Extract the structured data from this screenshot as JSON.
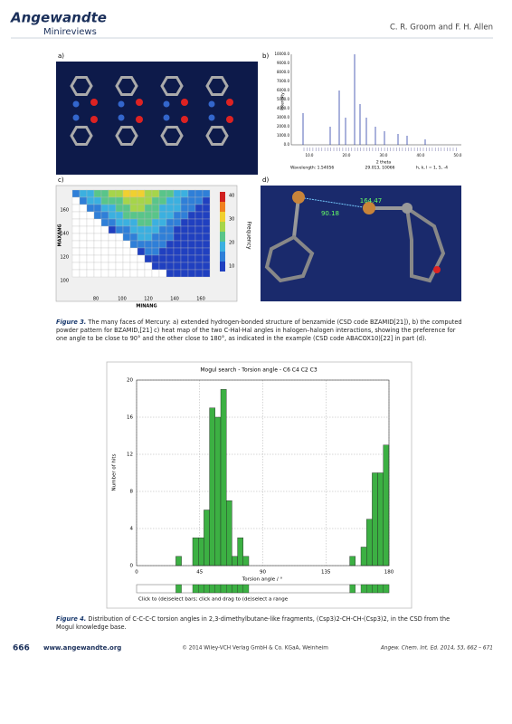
{
  "header": {
    "journal": "Angewandte",
    "section": "Minireviews",
    "authors": "C. R. Groom and F. H. Allen"
  },
  "figure3": {
    "panel_a": {
      "label": "a)"
    },
    "panel_b": {
      "label": "b)",
      "ylabel": "Intensity",
      "yticks": [
        "0.0",
        "1000.0",
        "2000.0",
        "3000.0",
        "4000.0",
        "5000.0",
        "6000.0",
        "7000.0",
        "8000.0",
        "9000.0",
        "10000.0"
      ],
      "xticks": [
        "10.0",
        "20.0",
        "30.0",
        "40.0",
        "50.0"
      ],
      "xlabel": "2 theta",
      "wavelength": "Wavelength: 1.54056",
      "cursor": "29.013, 10066",
      "hkl": "h, k, l = 1, 5, -4"
    },
    "panel_c": {
      "label": "c)",
      "ylabel": "MAXANG",
      "yticks": [
        "160",
        "140",
        "120",
        "100"
      ],
      "xlabel": "MINANG",
      "xticks": [
        "80",
        "100",
        "120",
        "140",
        "160"
      ],
      "colorbar_label": "Frequency",
      "colorbar_ticks": [
        "40",
        "30",
        "20",
        "10"
      ]
    },
    "panel_d": {
      "label": "d)",
      "angle1": "90.18",
      "angle2": "164.47"
    },
    "caption_label": "Figure 3.",
    "caption": "The many faces of Mercury: a) extended hydrogen-bonded structure of benzamide (CSD code BZAMID[21]), b) the computed powder pattern for BZAMID,[21] c) heat map of the two C-Hal-Hal angles in halogen–halogen interactions, showing the preference for one angle to be close to 90° and the other close to 180°, as indicated in the example (CSD code ABACOX10)[22] in part (d)."
  },
  "chart_data": {
    "type": "histogram",
    "title": "Mogul search - Torsion angle - C6 C4 C2 C3",
    "x_label": "Torsion angle / °",
    "y_label": "Number of hits",
    "color": "#3cb043",
    "bins": [
      0,
      4,
      8,
      12,
      16,
      20,
      24,
      28,
      32,
      36,
      40,
      44,
      48,
      52,
      56,
      60,
      64,
      68,
      72,
      76,
      80,
      84,
      88,
      92,
      96,
      100,
      104,
      108,
      112,
      116,
      120,
      124,
      128,
      132,
      136,
      140,
      144,
      148,
      152,
      156,
      160,
      164,
      168,
      172,
      176,
      180
    ],
    "counts": [
      0,
      0,
      0,
      0,
      0,
      0,
      0,
      1,
      0,
      0,
      3,
      3,
      6,
      17,
      16,
      19,
      7,
      1,
      3,
      1,
      0,
      0,
      0,
      0,
      0,
      0,
      0,
      0,
      0,
      0,
      0,
      0,
      0,
      0,
      0,
      0,
      0,
      0,
      1,
      0,
      2,
      5,
      10,
      10,
      13
    ],
    "xlim": [
      0,
      180
    ],
    "xticks": [
      0,
      45,
      90,
      135,
      180
    ],
    "ylim": [
      0,
      20
    ],
    "yticks": [
      0,
      4,
      8,
      12,
      16,
      20
    ],
    "grid": true,
    "instruction": "Click to (de)select bars; click and drag to (de)select a range"
  },
  "figure4": {
    "caption_label": "Figure 4.",
    "caption": "Distribution of C-C-C-C torsion angles in 2,3-dimethylbutane-like fragments, (Csp3)2-CH-CH-(Csp3)2, in the CSD from the Mogul knowledge base."
  },
  "footer": {
    "page": "666",
    "url": "www.angewandte.org",
    "copyright": "© 2014 Wiley-VCH Verlag GmbH & Co. KGaA, Weinheim",
    "citation": "Angew. Chem. Int. Ed. 2014, 53, 662 – 671"
  }
}
